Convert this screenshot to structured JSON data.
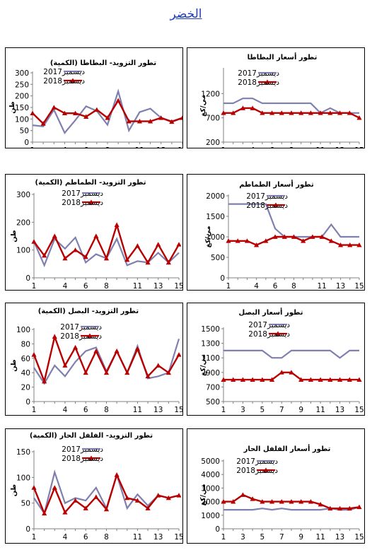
{
  "page": {
    "title": "الخضر"
  },
  "colors": {
    "series_2017": "#7f7fb0",
    "series_2018": "#b80000",
    "axis": "#808080"
  },
  "chart_data": [
    {
      "id": "potato-supply",
      "type": "line",
      "title": "تطور التزويد- البطاطا (الكمية)",
      "ylabel": "طن",
      "xlabel": "",
      "ylim": [
        0,
        300
      ],
      "yticks": [
        0,
        50,
        100,
        150,
        200,
        250,
        300
      ],
      "xlim": [
        1,
        15
      ],
      "xticks": [
        1,
        4,
        6,
        8,
        11,
        13,
        15
      ],
      "x": [
        1,
        2,
        3,
        4,
        5,
        6,
        7,
        8,
        9,
        10,
        11,
        12,
        13,
        14,
        15
      ],
      "series": [
        {
          "name": "ديسمبر2017",
          "values": [
            73,
            68,
            140,
            40,
            95,
            155,
            135,
            75,
            220,
            50,
            130,
            145,
            105,
            90,
            105
          ]
        },
        {
          "name": "ديسمبر2018",
          "values": [
            125,
            80,
            150,
            125,
            125,
            110,
            140,
            105,
            180,
            90,
            90,
            90,
            105,
            88,
            105
          ]
        }
      ]
    },
    {
      "id": "potato-price",
      "type": "line",
      "title": "تطور أسعار البطاطا",
      "ylabel": "مي/كغ",
      "xlabel": "",
      "ylim": [
        200,
        1700
      ],
      "yticks": [
        200,
        700,
        1200
      ],
      "xlim": [
        1,
        15
      ],
      "xticks": [
        1,
        4,
        6,
        8,
        11,
        13,
        15
      ],
      "x": [
        1,
        2,
        3,
        4,
        5,
        6,
        7,
        8,
        9,
        10,
        11,
        12,
        13,
        14,
        15
      ],
      "series": [
        {
          "name": "ديسمبر2017",
          "values": [
            1000,
            1000,
            1100,
            1100,
            1000,
            1000,
            1000,
            1000,
            1000,
            1000,
            800,
            900,
            800,
            800,
            800
          ]
        },
        {
          "name": "ديسمبر2018",
          "values": [
            800,
            800,
            900,
            900,
            800,
            800,
            800,
            800,
            800,
            800,
            800,
            800,
            800,
            800,
            700
          ]
        }
      ]
    },
    {
      "id": "tomato-supply",
      "type": "line",
      "title": "تطور التزويد- الطماطم (الكمية)",
      "ylabel": "طن",
      "xlabel": "",
      "ylim": [
        0,
        300
      ],
      "yticks": [
        0,
        100,
        200,
        300
      ],
      "xlim": [
        1,
        15
      ],
      "xticks": [
        1,
        4,
        6,
        8,
        11,
        13,
        15
      ],
      "x": [
        1,
        2,
        3,
        4,
        5,
        6,
        7,
        8,
        9,
        10,
        11,
        12,
        13,
        14,
        15
      ],
      "series": [
        {
          "name": "ديسمبر2017",
          "values": [
            130,
            45,
            140,
            105,
            145,
            55,
            85,
            70,
            140,
            45,
            60,
            55,
            90,
            55,
            90
          ]
        },
        {
          "name": "ديسمبر2018",
          "values": [
            130,
            80,
            150,
            70,
            100,
            75,
            150,
            70,
            190,
            65,
            115,
            55,
            120,
            55,
            120
          ]
        }
      ]
    },
    {
      "id": "tomato-price",
      "type": "line",
      "title": "تطور أسعار الطماطم",
      "ylabel": "مي/كغ",
      "xlabel": "",
      "ylim": [
        0,
        2000
      ],
      "yticks": [
        0,
        500,
        1000,
        1500,
        2000
      ],
      "xlim": [
        1,
        15
      ],
      "xticks": [
        1,
        4,
        6,
        8,
        11,
        13,
        15
      ],
      "x": [
        1,
        2,
        3,
        4,
        5,
        6,
        7,
        8,
        9,
        10,
        11,
        12,
        13,
        14,
        15
      ],
      "series": [
        {
          "name": "ديسمبر2017",
          "values": [
            1800,
            1800,
            1800,
            1800,
            1800,
            1200,
            1000,
            1000,
            1000,
            1000,
            1000,
            1300,
            1000,
            1000,
            1000
          ]
        },
        {
          "name": "ديسمبر2018",
          "values": [
            900,
            900,
            900,
            800,
            900,
            1000,
            1000,
            1000,
            900,
            1000,
            1000,
            900,
            800,
            800,
            800
          ]
        }
      ]
    },
    {
      "id": "onion-supply",
      "type": "line",
      "title": "تطور التزويد- البصل (الكمية)",
      "ylabel": "طن",
      "xlabel": "",
      "ylim": [
        0,
        100
      ],
      "yticks": [
        0,
        20,
        40,
        60,
        80,
        100
      ],
      "xlim": [
        1,
        15
      ],
      "xticks": [
        1,
        4,
        6,
        8,
        11,
        13,
        15
      ],
      "x": [
        1,
        2,
        3,
        4,
        5,
        6,
        7,
        8,
        9,
        10,
        11,
        12,
        13,
        14,
        15
      ],
      "series": [
        {
          "name": "ديسمبر2017",
          "values": [
            47,
            25,
            50,
            35,
            55,
            70,
            75,
            42,
            70,
            40,
            77,
            32,
            35,
            40,
            87
          ]
        },
        {
          "name": "ديسمبر2018",
          "values": [
            65,
            28,
            90,
            50,
            75,
            40,
            70,
            40,
            70,
            40,
            73,
            35,
            50,
            40,
            65
          ]
        }
      ]
    },
    {
      "id": "onion-price",
      "type": "line",
      "title": "تطور أسعار البصل",
      "ylabel": "مي/كغ",
      "xlabel": "",
      "ylim": [
        500,
        1500
      ],
      "yticks": [
        500,
        700,
        900,
        1100,
        1300,
        1500
      ],
      "xlim": [
        1,
        15
      ],
      "xticks": [
        1,
        3,
        5,
        7,
        9,
        11,
        13,
        15
      ],
      "x": [
        1,
        2,
        3,
        4,
        5,
        6,
        7,
        8,
        9,
        10,
        11,
        12,
        13,
        14,
        15
      ],
      "series": [
        {
          "name": "ديسمبر2017",
          "values": [
            1200,
            1200,
            1200,
            1200,
            1200,
            1100,
            1100,
            1200,
            1200,
            1200,
            1200,
            1200,
            1100,
            1200,
            1200
          ]
        },
        {
          "name": "ديسمبر2018",
          "values": [
            800,
            800,
            800,
            800,
            800,
            800,
            900,
            900,
            800,
            800,
            800,
            800,
            800,
            800,
            800
          ]
        }
      ]
    },
    {
      "id": "hotpepper-supply",
      "type": "line",
      "title": "تطور التزويد- الفلفل الحار (الكمية)",
      "ylabel": "طن",
      "xlabel": "",
      "ylim": [
        0,
        150
      ],
      "yticks": [
        0,
        50,
        100,
        150
      ],
      "xlim": [
        1,
        15
      ],
      "xticks": [
        1,
        4,
        6,
        8,
        11,
        13,
        15
      ],
      "x": [
        1,
        2,
        3,
        4,
        5,
        6,
        7,
        8,
        9,
        10,
        11,
        12,
        13,
        14,
        15
      ],
      "series": [
        {
          "name": "ديسمبر2017",
          "values": [
            60,
            30,
            110,
            50,
            60,
            55,
            80,
            40,
            105,
            40,
            67,
            45,
            65,
            60,
            65
          ]
        },
        {
          "name": "ديسمبر2018",
          "values": [
            80,
            30,
            80,
            32,
            55,
            40,
            62,
            38,
            105,
            60,
            55,
            40,
            65,
            60,
            65
          ]
        }
      ]
    },
    {
      "id": "hotpepper-price",
      "type": "line",
      "title": "تطور أسعار الفلفل الحار",
      "ylabel": "مي/كغ",
      "xlabel": "",
      "ylim": [
        0,
        5000
      ],
      "yticks": [
        0,
        1000,
        2000,
        3000,
        4000,
        5000
      ],
      "xlim": [
        1,
        15
      ],
      "xticks": [
        1,
        3,
        5,
        7,
        9,
        11,
        13,
        15
      ],
      "x": [
        1,
        2,
        3,
        4,
        5,
        6,
        7,
        8,
        9,
        10,
        11,
        12,
        13,
        14,
        15
      ],
      "series": [
        {
          "name": "ديسمبر2017",
          "values": [
            1400,
            1400,
            1400,
            1400,
            1500,
            1400,
            1500,
            1400,
            1400,
            1400,
            1400,
            1500,
            1400,
            1400,
            1600
          ]
        },
        {
          "name": "ديسمبر2018",
          "values": [
            2000,
            2000,
            2500,
            2200,
            2000,
            2000,
            2000,
            2000,
            2000,
            2000,
            1800,
            1500,
            1500,
            1500,
            1600
          ]
        }
      ]
    }
  ]
}
